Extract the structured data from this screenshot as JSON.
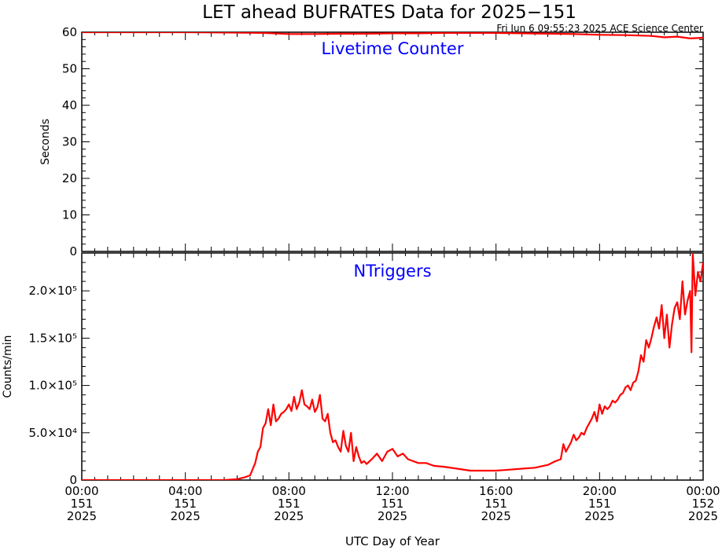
{
  "title": "LET ahead BUFRATES Data for 2025−151",
  "timestamp": "Fri Jun  6 09:55:23 2025 ACE Science Center",
  "x_axis_label": "UTC Day of Year",
  "colors": {
    "series": "#ff0000",
    "panel_label": "#0000ff",
    "axes": "#000000"
  },
  "x_ticks": [
    {
      "time": "00:00",
      "doy": "151",
      "year": "2025"
    },
    {
      "time": "04:00",
      "doy": "151",
      "year": "2025"
    },
    {
      "time": "08:00",
      "doy": "151",
      "year": "2025"
    },
    {
      "time": "12:00",
      "doy": "151",
      "year": "2025"
    },
    {
      "time": "16:00",
      "doy": "151",
      "year": "2025"
    },
    {
      "time": "20:00",
      "doy": "151",
      "year": "2025"
    },
    {
      "time": "00:00",
      "doy": "152",
      "year": "2025"
    }
  ],
  "chart_data": [
    {
      "type": "line",
      "panel_label": "Livetime Counter",
      "ylabel": "Seconds",
      "ylim": [
        0,
        60
      ],
      "xlim_hours": [
        0,
        24
      ],
      "y_ticks": [
        "0",
        "10",
        "20",
        "30",
        "40",
        "50",
        "60"
      ],
      "y_tick_values": [
        0,
        10,
        20,
        30,
        40,
        50,
        60
      ],
      "series": [
        {
          "x_hours": [
            0,
            2,
            4,
            6,
            7,
            8,
            9,
            10,
            11,
            12,
            13,
            14,
            15,
            16,
            17,
            18,
            19,
            20,
            21,
            22,
            22.5,
            23,
            23.5,
            24
          ],
          "values": [
            60,
            60,
            60,
            59.9,
            59.8,
            59.5,
            59.5,
            59.6,
            59.6,
            59.7,
            59.7,
            59.8,
            59.8,
            59.8,
            59.7,
            59.6,
            59.5,
            59.3,
            59.2,
            59.0,
            58.6,
            58.8,
            58.3,
            58.5
          ]
        }
      ]
    },
    {
      "type": "line",
      "panel_label": "NTriggers",
      "ylabel": "Counts/min",
      "ylim": [
        0,
        240000
      ],
      "xlim_hours": [
        0,
        24
      ],
      "y_ticks": [
        "0",
        "5.0×10⁴",
        "1.0×10⁵",
        "1.5×10⁵",
        "2.0×10⁵"
      ],
      "y_tick_values": [
        0,
        50000,
        100000,
        150000,
        200000
      ],
      "series": [
        {
          "x_hours": [
            0,
            2,
            4,
            5.5,
            6.0,
            6.3,
            6.5,
            6.7,
            6.8,
            6.9,
            7.0,
            7.1,
            7.2,
            7.3,
            7.4,
            7.5,
            7.6,
            7.7,
            7.8,
            7.9,
            8.0,
            8.1,
            8.2,
            8.3,
            8.4,
            8.5,
            8.6,
            8.7,
            8.8,
            8.9,
            9.0,
            9.1,
            9.2,
            9.3,
            9.4,
            9.5,
            9.6,
            9.7,
            9.8,
            9.9,
            10.0,
            10.1,
            10.2,
            10.3,
            10.4,
            10.5,
            10.6,
            10.7,
            10.8,
            10.9,
            11.0,
            11.2,
            11.4,
            11.6,
            11.8,
            12.0,
            12.2,
            12.4,
            12.6,
            12.8,
            13.0,
            13.3,
            13.6,
            14.0,
            14.5,
            15.0,
            15.5,
            16.0,
            16.5,
            17.0,
            17.5,
            18.0,
            18.3,
            18.5,
            18.6,
            18.7,
            18.8,
            18.9,
            19.0,
            19.1,
            19.2,
            19.3,
            19.4,
            19.5,
            19.6,
            19.7,
            19.8,
            19.9,
            20.0,
            20.1,
            20.2,
            20.3,
            20.4,
            20.5,
            20.6,
            20.7,
            20.8,
            20.9,
            21.0,
            21.1,
            21.2,
            21.3,
            21.4,
            21.5,
            21.6,
            21.7,
            21.8,
            21.9,
            22.0,
            22.1,
            22.2,
            22.3,
            22.4,
            22.5,
            22.6,
            22.7,
            22.8,
            22.9,
            23.0,
            23.1,
            23.2,
            23.3,
            23.4,
            23.5,
            23.55,
            23.6,
            23.7,
            23.8,
            23.9,
            24.0
          ],
          "values": [
            0,
            0,
            0,
            0,
            1000,
            3000,
            5000,
            18000,
            30000,
            35000,
            55000,
            60000,
            75000,
            58000,
            80000,
            62000,
            65000,
            70000,
            72000,
            75000,
            80000,
            73000,
            88000,
            75000,
            82000,
            95000,
            80000,
            78000,
            75000,
            85000,
            72000,
            77000,
            90000,
            65000,
            62000,
            70000,
            50000,
            40000,
            42000,
            35000,
            30000,
            52000,
            36000,
            30000,
            50000,
            20000,
            35000,
            25000,
            18000,
            20000,
            17000,
            22000,
            28000,
            20000,
            30000,
            33000,
            25000,
            28000,
            22000,
            20000,
            18000,
            18000,
            15000,
            14000,
            12000,
            10000,
            10000,
            10000,
            11000,
            12000,
            13000,
            16000,
            20000,
            22000,
            38000,
            30000,
            35000,
            40000,
            48000,
            42000,
            45000,
            50000,
            48000,
            55000,
            60000,
            65000,
            72000,
            62000,
            80000,
            70000,
            78000,
            75000,
            78000,
            84000,
            82000,
            85000,
            90000,
            92000,
            98000,
            100000,
            95000,
            103000,
            105000,
            115000,
            132000,
            125000,
            148000,
            140000,
            150000,
            162000,
            172000,
            160000,
            185000,
            150000,
            175000,
            140000,
            165000,
            182000,
            188000,
            170000,
            210000,
            175000,
            190000,
            200000,
            135000,
            240000,
            195000,
            220000,
            210000,
            230000
          ]
        }
      ]
    }
  ]
}
